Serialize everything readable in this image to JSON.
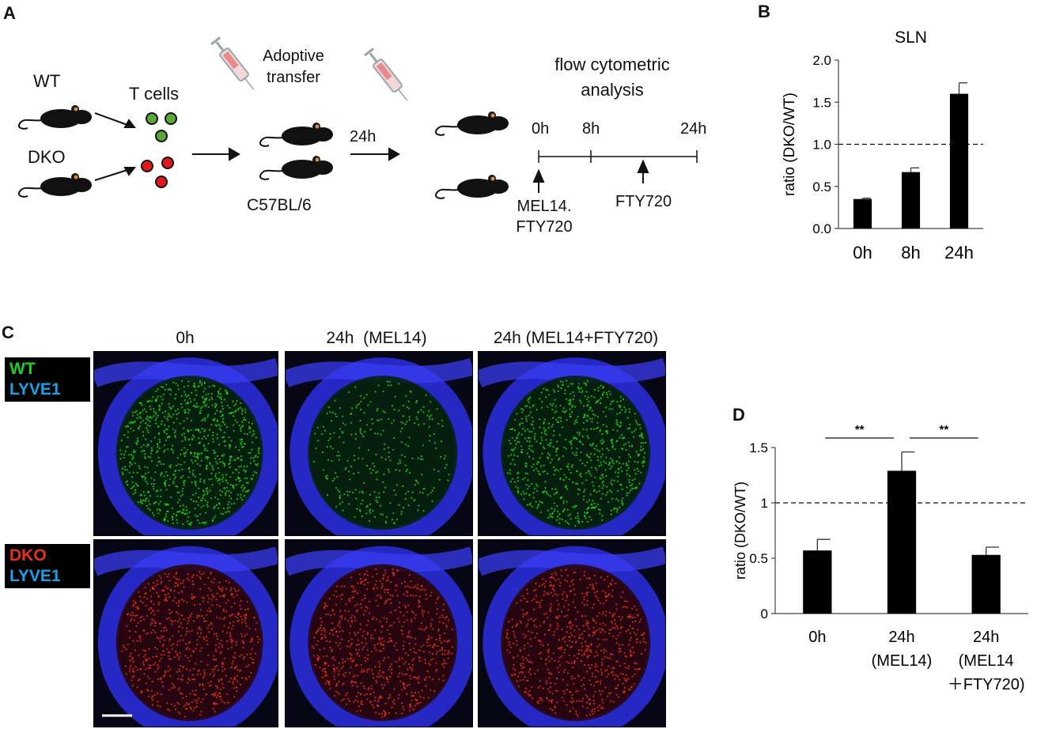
{
  "panel_letters": {
    "a": "A",
    "b": "B",
    "c": "C",
    "d": "D"
  },
  "panel_a": {
    "wt_label": "WT",
    "dko_label": "DKO",
    "t_cells_label": "T cells",
    "adoptive_transfer_label_line1": "Adoptive",
    "adoptive_transfer_label_line2": "transfer",
    "recipient_label": "C57BL/6",
    "interval_label": "24h",
    "analysis_label_line1": "flow cytometric",
    "analysis_label_line2": "analysis",
    "timeline": {
      "t0": "0h",
      "t8": "8h",
      "t24": "24h",
      "treatment_0h_line1": "MEL14.",
      "treatment_0h_line2": "FTY720",
      "treatment_12h": "FTY720"
    },
    "colors": {
      "wt_cell": "#5aa83a",
      "dko_cell": "#e0191e",
      "mouse": "#111111"
    }
  },
  "panel_c": {
    "column_headers": [
      "0h",
      "24h  (MEL14)",
      "24h (MEL14+FTY720)"
    ],
    "top_legend": {
      "cell_label": "WT",
      "marker_label": "LYVE1"
    },
    "bottom_legend": {
      "cell_label": "DKO",
      "marker_label": "LYVE1"
    },
    "colors": {
      "wt": "#1fd21f",
      "dko": "#e8311c",
      "lyve1": "#1aa0e6",
      "lyve1_stain": "#2a2cff"
    }
  },
  "chart_data": [
    {
      "type": "bar",
      "panel": "B",
      "title": "SLN",
      "ylabel": "ratio (DKO/WT)",
      "xlabel": "",
      "categories": [
        "0h",
        "8h",
        "24h"
      ],
      "values": [
        0.35,
        0.67,
        1.6
      ],
      "errors": [
        0.01,
        0.05,
        0.13
      ],
      "ylim": [
        0,
        2.0
      ],
      "yticks": [
        "0.0",
        "0.5",
        "1.0",
        "1.5",
        "2.0"
      ],
      "reference_line": 1.0,
      "bar_color": "#000000"
    },
    {
      "type": "bar",
      "panel": "D",
      "title": "",
      "ylabel": "ratio (DKO/WT)",
      "xlabel": "",
      "categories": [
        "0h",
        "24h\n(MEL14)",
        "24h\n(MEL14\n＋FTY720)"
      ],
      "values": [
        0.57,
        1.29,
        0.53
      ],
      "errors": [
        0.1,
        0.17,
        0.07
      ],
      "ylim": [
        0,
        1.5
      ],
      "yticks": [
        "0",
        "0.5",
        "1",
        "1.5"
      ],
      "reference_line": 1.0,
      "significance": [
        {
          "from": 0,
          "to": 1,
          "label": "**"
        },
        {
          "from": 1,
          "to": 2,
          "label": "**"
        }
      ],
      "bar_color": "#000000"
    }
  ]
}
